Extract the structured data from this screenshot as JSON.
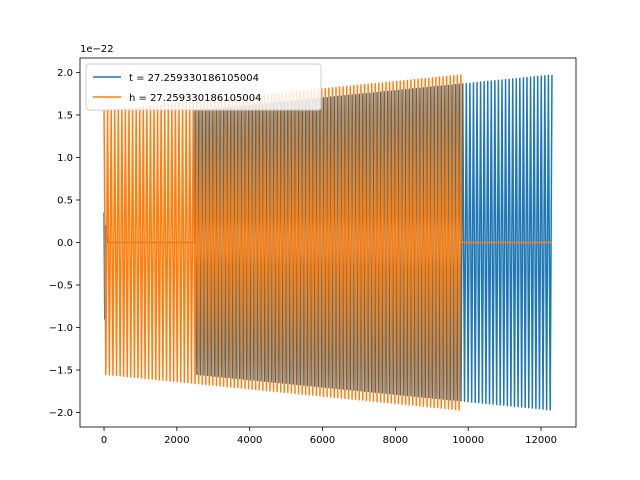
{
  "chart_data": {
    "type": "line",
    "title": "",
    "xlabel": "",
    "ylabel": "",
    "y_offset_label": "1e−22",
    "xlim": [
      -660,
      12960
    ],
    "ylim": [
      -2.17,
      2.17
    ],
    "x_ticks": [
      {
        "value": 0,
        "label": "0"
      },
      {
        "value": 2000,
        "label": "2000"
      },
      {
        "value": 4000,
        "label": "4000"
      },
      {
        "value": 6000,
        "label": "6000"
      },
      {
        "value": 8000,
        "label": "8000"
      },
      {
        "value": 10000,
        "label": "10000"
      },
      {
        "value": 12000,
        "label": "12000"
      }
    ],
    "y_ticks": [
      {
        "value": 2.0,
        "label": "2.0"
      },
      {
        "value": 1.5,
        "label": "1.5"
      },
      {
        "value": 1.0,
        "label": "1.0"
      },
      {
        "value": 0.5,
        "label": "0.5"
      },
      {
        "value": 0.0,
        "label": "0.0"
      },
      {
        "value": -0.5,
        "label": "−0.5"
      },
      {
        "value": -1.0,
        "label": "−1.0"
      },
      {
        "value": -1.5,
        "label": "−1.5"
      },
      {
        "value": -2.0,
        "label": "−2.0"
      }
    ],
    "grid": false,
    "legend_position": "top-left",
    "series": [
      {
        "name": "t = 27.259330186105004",
        "color": "#1f77b4",
        "pre_signal": {
          "x_start": 0,
          "x_end": 2500,
          "points": [
            [
              0,
              0.35
            ],
            [
              20,
              -0.9
            ],
            [
              40,
              -0.2
            ],
            [
              60,
              0.2
            ],
            [
              100,
              0.0
            ],
            [
              2500,
              0.0
            ]
          ]
        },
        "oscillation": {
          "x_start": 2500,
          "x_end": 12300,
          "amplitude_start": 1.55,
          "amplitude_end": 1.97,
          "cycles": 100
        },
        "post_signal": {
          "x_start": 12300,
          "x_end": 12300,
          "value": 0.0
        }
      },
      {
        "name": "h = 27.259330186105004",
        "color": "#ff7f0e",
        "pre_signal": {
          "x_start": 0,
          "x_end": 0,
          "points": []
        },
        "oscillation": {
          "x_start": 0,
          "x_end": 9800,
          "amplitude_start": 1.55,
          "amplitude_end": 1.97,
          "cycles": 100
        },
        "post_signal": {
          "x_start": 9800,
          "x_end": 12300,
          "value": 0.0
        }
      }
    ]
  }
}
